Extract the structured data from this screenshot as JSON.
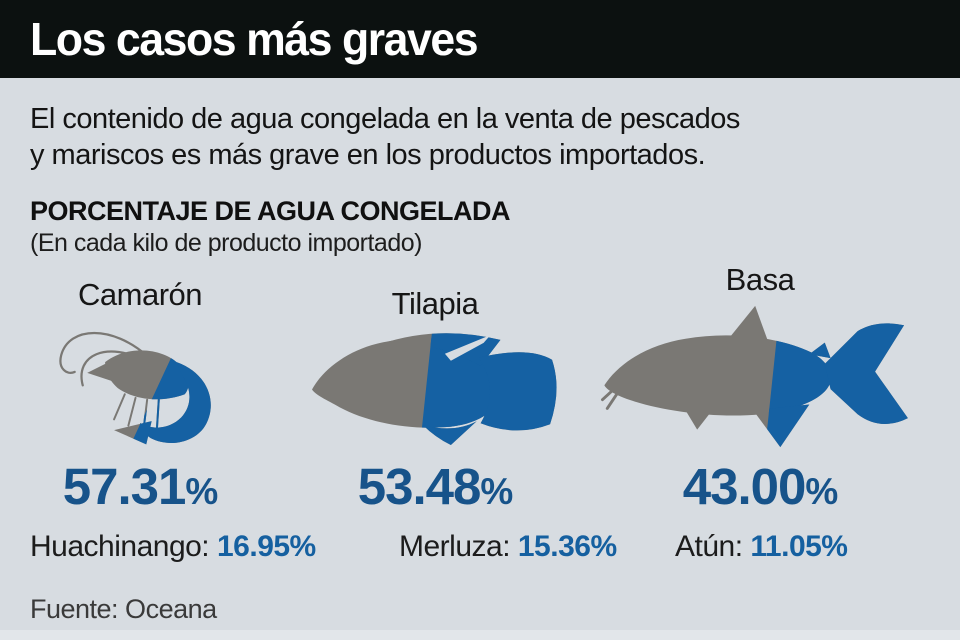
{
  "header": {
    "title": "Los casos más graves"
  },
  "intro": {
    "line1": "El contenido de agua congelada en la venta de pescados",
    "line2": "y mariscos es más grave en los productos importados."
  },
  "section": {
    "title": "PORCENTAJE DE AGUA CONGELADA",
    "subtitle": "(En cada kilo de producto importado)"
  },
  "chart_data": {
    "type": "bar",
    "variant": "pictogram-fill (fish silhouettes filled by percentage)",
    "title": "PORCENTAJE DE AGUA CONGELADA",
    "subtitle": "(En cada kilo de producto importado)",
    "unit": "%",
    "categories": [
      "Camarón",
      "Tilapia",
      "Basa"
    ],
    "values": [
      57.31,
      53.48,
      43.0
    ],
    "secondary_values": [
      {
        "label": "Huachinango",
        "value": 16.95
      },
      {
        "label": "Merluza",
        "value": 15.36
      },
      {
        "label": "Atún",
        "value": 11.05
      }
    ],
    "source": "Fuente: Oceana"
  },
  "fishes": [
    {
      "name": "Camarón",
      "value": 57.31,
      "display_number": "57.31"
    },
    {
      "name": "Tilapia",
      "value": 53.48,
      "display_number": "53.48"
    },
    {
      "name": "Basa",
      "value": 43.0,
      "display_number": "43.00"
    }
  ],
  "secondary": [
    {
      "name": "Huachinango: ",
      "value": "16.95%"
    },
    {
      "name": "Merluza: ",
      "value": "15.36%"
    },
    {
      "name": "Atún: ",
      "value": "11.05%"
    }
  ],
  "source": {
    "label": "Fuente: Oceana"
  },
  "colors": {
    "header_bg": "#0c1110",
    "header_text": "#ffffff",
    "background": "#d7dce1",
    "fish_gray": "#7a7874",
    "fish_blue": "#1561a3",
    "big_number_blue": "#17538a",
    "value_blue": "#1560a0",
    "text_dark": "#141414"
  }
}
